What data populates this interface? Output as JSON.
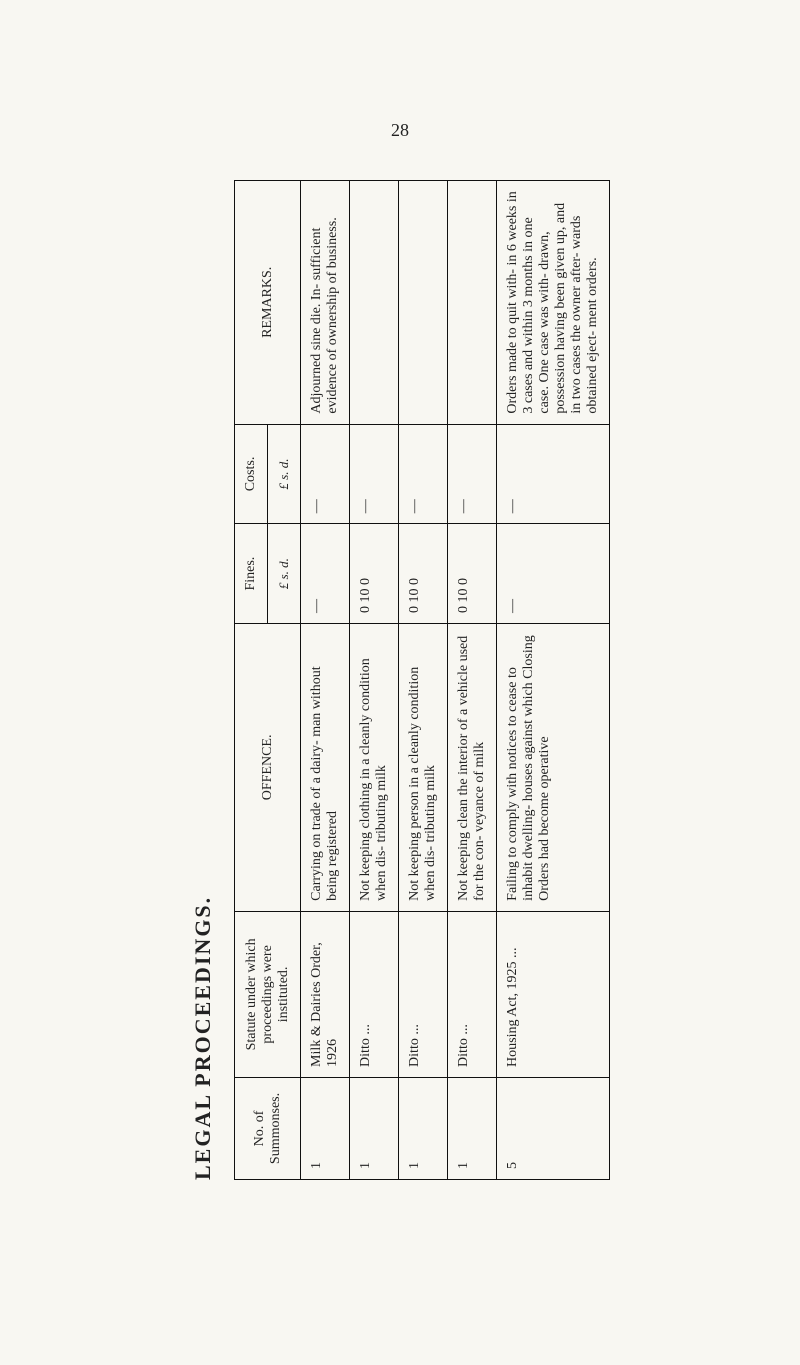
{
  "page_number": "28",
  "heading": "LEGAL PROCEEDINGS.",
  "table": {
    "headers": {
      "no_of_summonses": "No. of\nSummonses.",
      "statute": "Statute under which\nproceedings were\ninstituted.",
      "offence": "OFFENCE.",
      "fines": "Fines.",
      "costs": "Costs.",
      "remarks": "REMARKS."
    },
    "subheaders": {
      "fines_units": "£  s.  d.",
      "costs_units": "£  s.  d."
    },
    "rows": [
      {
        "no": "1",
        "statute": "Milk & Dairies Order,\n1926",
        "offence": "Carrying on trade of a dairy-\nman without being registered",
        "fines": "—",
        "costs": "—",
        "remarks": "Adjourned sine die. In-\nsufficient evidence of\nownership of business."
      },
      {
        "no": "1",
        "statute": "Ditto ...",
        "offence": "Not keeping clothing in a\ncleanly condition when dis-\ntributing milk",
        "fines": "0 10 0",
        "costs": "—",
        "remarks": ""
      },
      {
        "no": "1",
        "statute": "Ditto ...",
        "offence": "Not keeping person in a\ncleanly condition when dis-\ntributing milk",
        "fines": "0 10 0",
        "costs": "—",
        "remarks": ""
      },
      {
        "no": "1",
        "statute": "Ditto ...",
        "offence": "Not keeping clean the interior\nof a vehicle used for the con-\nveyance of milk",
        "fines": "0 10 0",
        "costs": "—",
        "remarks": ""
      },
      {
        "no": "5",
        "statute": "Housing Act, 1925 ...",
        "offence": "Failing to comply with notices\nto cease to inhabit dwelling-\nhouses against which Closing\nOrders had become operative",
        "fines": "—",
        "costs": "—",
        "remarks": "Orders made to quit with-\nin 6 weeks in 3 cases and\nwithin 3 months in one\ncase. One case was with-\ndrawn, possession having\nbeen given up, and in two\ncases the owner after-\nwards obtained eject-\nment orders."
      }
    ]
  }
}
